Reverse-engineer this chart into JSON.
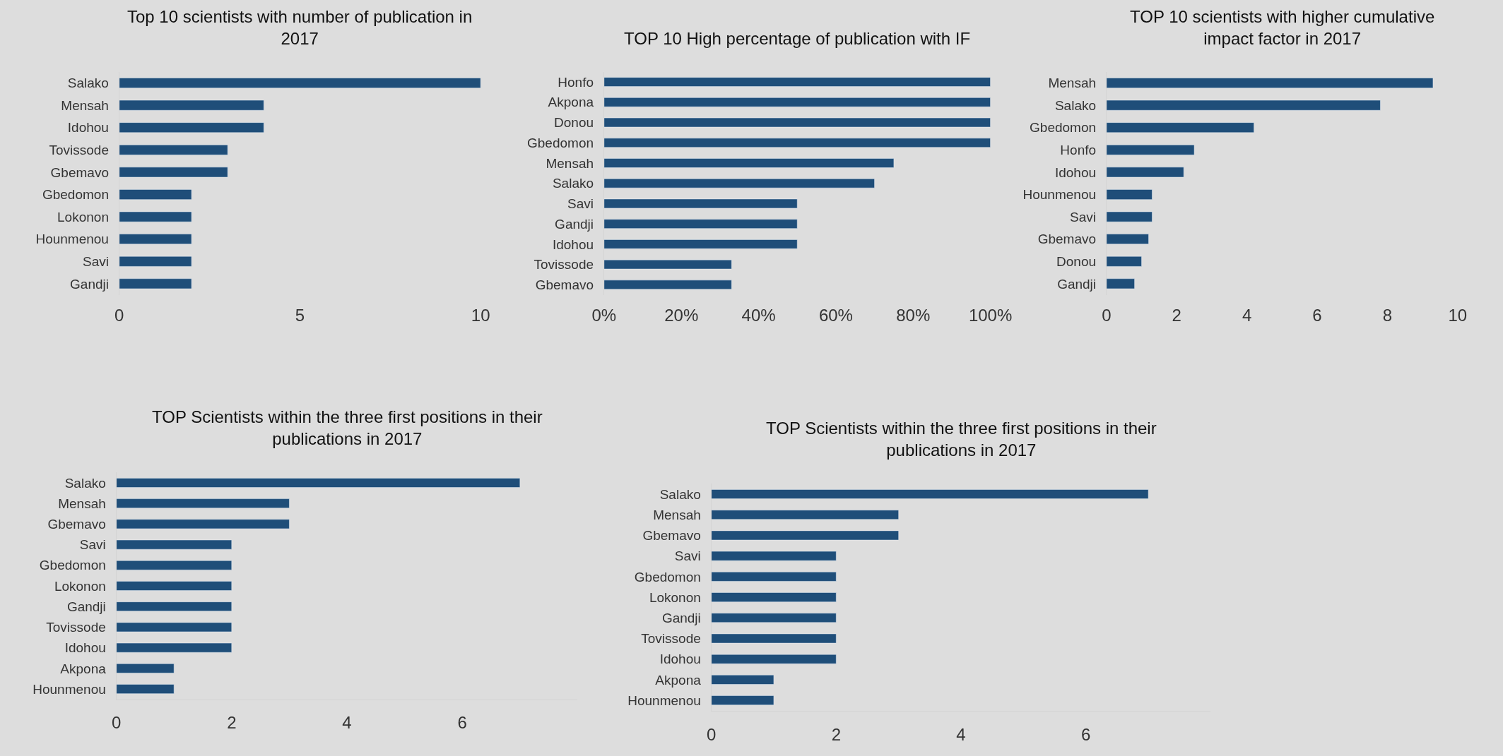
{
  "chart_data": [
    {
      "type": "bar",
      "orientation": "horizontal",
      "title": "Top 10 scientists with number of publication in 2017",
      "categories": [
        "Salako",
        "Mensah",
        "Idohou",
        "Tovissode",
        "Gbemavo",
        "Gbedomon",
        "Lokonon",
        "Hounmenou",
        "Savi",
        "Gandji"
      ],
      "values": [
        10,
        4,
        4,
        3,
        3,
        2,
        2,
        2,
        2,
        2
      ],
      "color": "#1f4e79",
      "xlim": [
        0,
        10
      ],
      "xticks": [
        0,
        5,
        10
      ]
    },
    {
      "type": "bar",
      "orientation": "horizontal",
      "title": "TOP 10 High percentage of publication with IF",
      "categories": [
        "Honfo",
        "Akpona",
        "Donou",
        "Gbedomon",
        "Mensah",
        "Salako",
        "Savi",
        "Gandji",
        "Idohou",
        "Tovissode",
        "Gbemavo"
      ],
      "values": [
        100,
        100,
        100,
        100,
        75,
        70,
        50,
        50,
        50,
        33,
        33
      ],
      "color": "#1f4e79",
      "xlim": [
        0,
        100
      ],
      "xticks": [
        {
          "value": 0,
          "label": "0%"
        },
        {
          "value": 20,
          "label": "20%"
        },
        {
          "value": 40,
          "label": "40%"
        },
        {
          "value": 60,
          "label": "60%"
        },
        {
          "value": 80,
          "label": "80%"
        },
        {
          "value": 100,
          "label": "100%"
        }
      ]
    },
    {
      "type": "bar",
      "orientation": "horizontal",
      "title": "TOP 10 scientists with higher cumulative impact factor in 2017",
      "categories": [
        "Mensah",
        "Salako",
        "Gbedomon",
        "Honfo",
        "Idohou",
        "Hounmenou",
        "Savi",
        "Gbemavo",
        "Donou",
        "Gandji"
      ],
      "values": [
        9.3,
        7.8,
        4.2,
        2.5,
        2.2,
        1.3,
        1.3,
        1.2,
        1.0,
        0.8
      ],
      "color": "#1f4e79",
      "xlim": [
        0,
        10
      ],
      "xticks": [
        0,
        2,
        4,
        6,
        8,
        10
      ]
    },
    {
      "type": "bar",
      "orientation": "horizontal",
      "title": "TOP Scientists within the three first positions in their publications in 2017",
      "categories": [
        "Salako",
        "Mensah",
        "Gbemavo",
        "Savi",
        "Gbedomon",
        "Lokonon",
        "Gandji",
        "Tovissode",
        "Idohou",
        "Akpona",
        "Hounmenou"
      ],
      "values": [
        7,
        3,
        3,
        2,
        2,
        2,
        2,
        2,
        2,
        1,
        1
      ],
      "color": "#1f4e79",
      "xlim": [
        0,
        8
      ],
      "xticks": [
        0,
        2,
        4,
        6
      ]
    },
    {
      "type": "bar",
      "orientation": "horizontal",
      "title": "TOP Scientists within the three first positions in their publications in 2017",
      "categories": [
        "Salako",
        "Mensah",
        "Gbemavo",
        "Savi",
        "Gbedomon",
        "Lokonon",
        "Gandji",
        "Tovissode",
        "Idohou",
        "Akpona",
        "Hounmenou"
      ],
      "values": [
        7,
        3,
        3,
        2,
        2,
        2,
        2,
        2,
        2,
        1,
        1
      ],
      "color": "#1f4e79",
      "xlim": [
        0,
        8
      ],
      "xticks": [
        0,
        2,
        4,
        6
      ]
    }
  ]
}
